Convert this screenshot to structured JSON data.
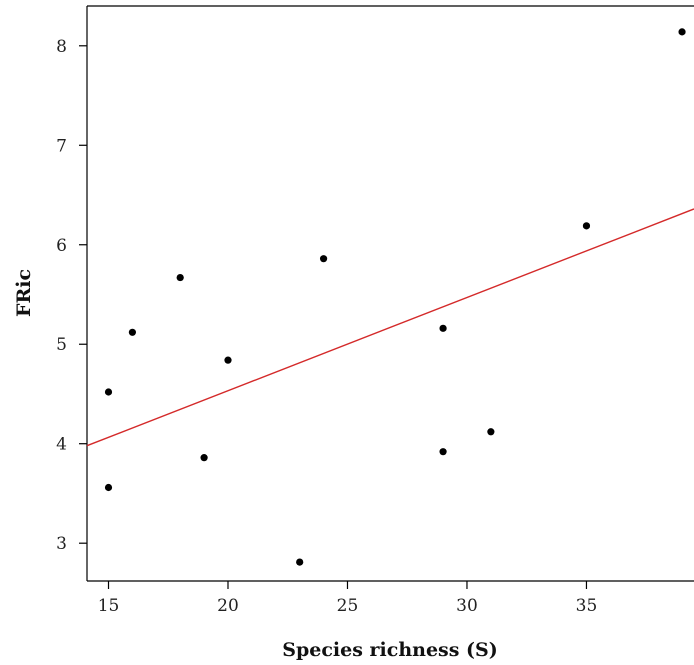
{
  "chart_data": {
    "type": "scatter",
    "title": "",
    "xlabel": "Species richness (S)",
    "ylabel": "FRic",
    "xlim": [
      14.1,
      39.5
    ],
    "ylim": [
      2.62,
      8.4
    ],
    "x_ticks": [
      "15",
      "20",
      "25",
      "30",
      "35"
    ],
    "y_ticks": [
      "3",
      "4",
      "5",
      "6",
      "7",
      "8"
    ],
    "grid": false,
    "legend": "none",
    "point_color": "#000000",
    "line_color": "#d42a2a",
    "points": [
      {
        "x": 15,
        "y": 4.52
      },
      {
        "x": 15,
        "y": 3.56
      },
      {
        "x": 16,
        "y": 5.12
      },
      {
        "x": 18,
        "y": 5.67
      },
      {
        "x": 19,
        "y": 3.86
      },
      {
        "x": 20,
        "y": 4.84
      },
      {
        "x": 23,
        "y": 2.81
      },
      {
        "x": 24,
        "y": 5.86
      },
      {
        "x": 29,
        "y": 5.16
      },
      {
        "x": 29,
        "y": 3.92
      },
      {
        "x": 31,
        "y": 4.12
      },
      {
        "x": 35,
        "y": 6.19
      },
      {
        "x": 39,
        "y": 8.14
      }
    ],
    "fit_line": {
      "x": [
        14.1,
        39.5
      ],
      "y": [
        3.98,
        6.36
      ]
    }
  }
}
